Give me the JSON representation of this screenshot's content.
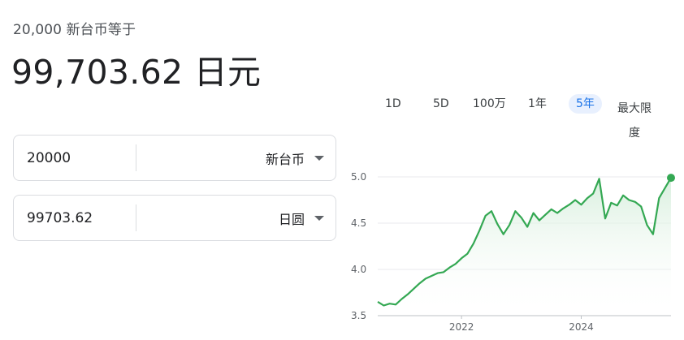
{
  "header": {
    "equation": "20,000 新台币等于",
    "result": "99,703.62 日元"
  },
  "converter": {
    "from": {
      "value": "20000",
      "currency": "新台币"
    },
    "to": {
      "value": "99703.62",
      "currency": "日圆"
    }
  },
  "range_tabs": [
    {
      "label": "1D",
      "active": false
    },
    {
      "label": "5D",
      "active": false
    },
    {
      "label": "100万",
      "active": false
    },
    {
      "label": "1年",
      "active": false
    },
    {
      "label": "5年",
      "active": true
    },
    {
      "label": "最大限度",
      "active": false
    }
  ],
  "colors": {
    "line": "#34a853",
    "fill_top": "#d4edda",
    "grid": "#e8eaed",
    "axis_text": "#5f6368",
    "accent": "#1a73e8"
  },
  "chart_data": {
    "type": "line",
    "ylim": [
      3.5,
      5.0
    ],
    "y_ticks": [
      "3.5",
      "4.0",
      "4.5",
      "5.0"
    ],
    "x_ticks": [
      "2022",
      "2024"
    ],
    "x_tick_years": [
      2022,
      2024
    ],
    "grid": true,
    "series": [
      {
        "x": [
          2020.6,
          2020.7,
          2020.8,
          2020.9,
          2021.0,
          2021.1,
          2021.2,
          2021.3,
          2021.4,
          2021.5,
          2021.6,
          2021.7,
          2021.8,
          2021.9,
          2022.0,
          2022.1,
          2022.2,
          2022.3,
          2022.4,
          2022.5,
          2022.6,
          2022.7,
          2022.8,
          2022.9,
          2023.0,
          2023.1,
          2023.2,
          2023.3,
          2023.4,
          2023.5,
          2023.6,
          2023.7,
          2023.8,
          2023.9,
          2024.0,
          2024.1,
          2024.2,
          2024.3,
          2024.4,
          2024.5,
          2024.6,
          2024.7,
          2024.8,
          2024.9,
          2025.0,
          2025.1,
          2025.2,
          2025.3,
          2025.4,
          2025.5
        ],
        "values": [
          3.65,
          3.61,
          3.63,
          3.62,
          3.68,
          3.73,
          3.79,
          3.85,
          3.9,
          3.93,
          3.96,
          3.97,
          4.02,
          4.06,
          4.12,
          4.17,
          4.28,
          4.42,
          4.58,
          4.63,
          4.49,
          4.38,
          4.48,
          4.63,
          4.56,
          4.46,
          4.61,
          4.53,
          4.59,
          4.65,
          4.61,
          4.66,
          4.7,
          4.75,
          4.7,
          4.77,
          4.82,
          4.98,
          4.55,
          4.72,
          4.69,
          4.8,
          4.75,
          4.73,
          4.68,
          4.48,
          4.38,
          4.77,
          4.88,
          4.99
        ]
      }
    ]
  }
}
